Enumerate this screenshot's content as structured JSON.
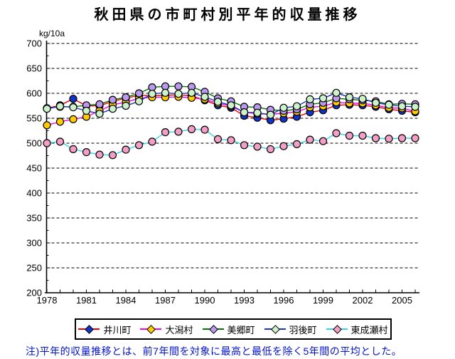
{
  "title": "秋田県の市町村別平年的収量推移",
  "unit_label": "kg/10a",
  "note": "注)平年的収量推移とは、前7年間を対象に最高と最低を除く5年間の平均とした。",
  "colors": {
    "background": "#ffffff",
    "title_text": "#000000",
    "note_text": "#0011cc",
    "axis": "#000000",
    "grid": "#000000"
  },
  "chart_data": {
    "type": "line",
    "title": "秋田県の市町村別平年的収量推移",
    "ylabel": "kg/10a",
    "ylim": [
      200,
      700
    ],
    "y_tick_step": 50,
    "grid": "horizontal-dashed",
    "legend_position": "bottom",
    "x_label_every": 3,
    "x": [
      1978,
      1979,
      1980,
      1981,
      1982,
      1983,
      1984,
      1985,
      1986,
      1987,
      1988,
      1989,
      1990,
      1991,
      1992,
      1993,
      1994,
      1995,
      1996,
      1997,
      1998,
      1999,
      2000,
      2001,
      2002,
      2003,
      2004,
      2005,
      2006
    ],
    "x_tick_labels": [
      "1978",
      "1981",
      "1984",
      "1987",
      "1990",
      "1993",
      "1996",
      "1999",
      "2002",
      "2005"
    ],
    "series": [
      {
        "name": "井川町",
        "line_color": "#ee0000",
        "marker_color": "#1133cc",
        "values": [
          570,
          576,
          589,
          575,
          575,
          584,
          590,
          596,
          595,
          596,
          597,
          595,
          586,
          576,
          571,
          555,
          551,
          546,
          549,
          553,
          562,
          566,
          576,
          577,
          576,
          573,
          568,
          565,
          562
        ]
      },
      {
        "name": "大潟村",
        "line_color": "#ff00ee",
        "marker_color": "#ffcc00",
        "values": [
          536,
          543,
          548,
          553,
          565,
          577,
          582,
          590,
          592,
          592,
          593,
          591,
          588,
          580,
          574,
          562,
          559,
          558,
          560,
          563,
          572,
          574,
          582,
          580,
          580,
          576,
          571,
          570,
          564
        ]
      },
      {
        "name": "美郷町",
        "line_color": "#007700",
        "marker_color": "#bb99ee",
        "values": [
          570,
          573,
          573,
          576,
          578,
          587,
          592,
          600,
          612,
          614,
          614,
          613,
          603,
          590,
          584,
          573,
          572,
          567,
          565,
          568,
          578,
          581,
          590,
          588,
          586,
          584,
          578,
          579,
          578
        ]
      },
      {
        "name": "羽後町",
        "line_color": "#2233bb",
        "marker_color": "#ccf2cc",
        "values": [
          569,
          574,
          572,
          565,
          559,
          569,
          575,
          584,
          599,
          601,
          599,
          601,
          593,
          583,
          576,
          562,
          561,
          557,
          571,
          574,
          588,
          590,
          601,
          592,
          589,
          581,
          577,
          574,
          573
        ]
      },
      {
        "name": "東成瀬村",
        "line_color": "#33d5ee",
        "marker_color": "#f49fc6",
        "values": [
          500,
          503,
          488,
          482,
          477,
          476,
          487,
          496,
          503,
          522,
          523,
          528,
          527,
          508,
          506,
          496,
          493,
          488,
          494,
          498,
          507,
          504,
          520,
          515,
          515,
          510,
          509,
          510,
          510
        ]
      }
    ]
  }
}
